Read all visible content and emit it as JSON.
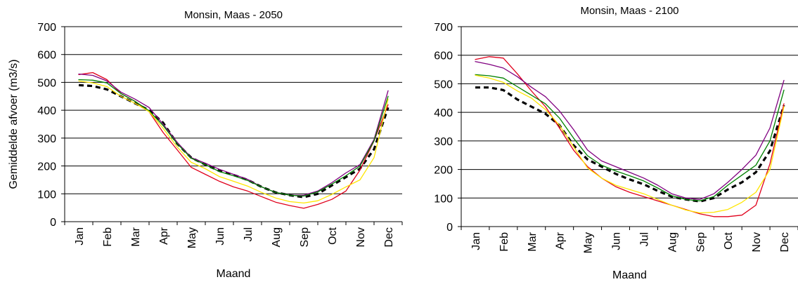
{
  "chart_data": [
    {
      "type": "line",
      "title": "Monsin, Maas - 2050",
      "xlabel": "Maand",
      "ylabel": "Gemiddelde afvoer (m3/s)",
      "ylim": [
        0,
        700
      ],
      "yticks": [
        0,
        100,
        200,
        300,
        400,
        500,
        600,
        700
      ],
      "grid": "horizontal",
      "legend": "none",
      "categories": [
        "Jan",
        "Feb",
        "Mar",
        "Apr",
        "May",
        "Jun",
        "Jul",
        "Aug",
        "Sep",
        "Oct",
        "Nov",
        "Dec"
      ],
      "x": [
        0,
        0.5,
        1,
        1.5,
        2,
        2.5,
        3,
        3.5,
        4,
        4.5,
        5,
        5.5,
        6,
        6.5,
        7,
        7.5,
        8,
        8.5,
        9,
        9.5,
        10,
        10.5,
        11
      ],
      "series": [
        {
          "color": "#000000",
          "style": "dashed",
          "values": [
            490,
            487,
            475,
            450,
            425,
            400,
            355,
            280,
            230,
            205,
            182,
            168,
            150,
            125,
            105,
            95,
            88,
            100,
            130,
            160,
            190,
            260,
            410
          ]
        },
        {
          "color": "#E0001B",
          "values": [
            528,
            535,
            510,
            460,
            432,
            395,
            320,
            258,
            195,
            170,
            145,
            125,
            110,
            90,
            70,
            58,
            48,
            62,
            80,
            110,
            185,
            290,
            420
          ]
        },
        {
          "color": "#800080",
          "values": [
            530,
            525,
            505,
            465,
            440,
            410,
            350,
            285,
            230,
            210,
            188,
            170,
            152,
            125,
            105,
            95,
            95,
            110,
            140,
            175,
            205,
            295,
            470
          ]
        },
        {
          "color": "#008000",
          "values": [
            510,
            508,
            498,
            460,
            432,
            398,
            345,
            280,
            228,
            205,
            180,
            165,
            148,
            125,
            105,
            95,
            92,
            107,
            135,
            165,
            200,
            290,
            450
          ]
        },
        {
          "color": "#FFE600",
          "values": [
            505,
            498,
            485,
            450,
            425,
            395,
            335,
            268,
            213,
            190,
            162,
            145,
            128,
            105,
            85,
            72,
            67,
            75,
            98,
            125,
            150,
            230,
            440
          ]
        }
      ]
    },
    {
      "type": "line",
      "title": "Monsin, Maas - 2100",
      "xlabel": "Maand",
      "ylabel": "",
      "ylim": [
        0,
        700
      ],
      "yticks": [
        0,
        100,
        200,
        300,
        400,
        500,
        600,
        700
      ],
      "grid": "horizontal",
      "legend": "none",
      "categories": [
        "Jan",
        "Feb",
        "Mar",
        "Apr",
        "May",
        "Jun",
        "Jul",
        "Aug",
        "Sep",
        "Oct",
        "Nov",
        "Dec"
      ],
      "x": [
        0,
        0.5,
        1,
        1.5,
        2,
        2.5,
        3,
        3.5,
        4,
        4.5,
        5,
        5.5,
        6,
        6.5,
        7,
        7.5,
        8,
        8.5,
        9,
        9.5,
        10,
        10.5,
        11
      ],
      "series": [
        {
          "color": "#000000",
          "style": "dashed",
          "values": [
            487,
            487,
            478,
            445,
            420,
            395,
            355,
            285,
            235,
            210,
            185,
            165,
            148,
            125,
            105,
            95,
            88,
            100,
            130,
            155,
            190,
            265,
            425
          ]
        },
        {
          "color": "#E0001B",
          "values": [
            585,
            595,
            590,
            535,
            475,
            420,
            345,
            268,
            210,
            170,
            140,
            120,
            105,
            90,
            75,
            60,
            45,
            35,
            35,
            40,
            75,
            220,
            430
          ]
        },
        {
          "color": "#800080",
          "values": [
            578,
            568,
            555,
            525,
            488,
            455,
            405,
            340,
            268,
            230,
            210,
            190,
            170,
            145,
            115,
            100,
            95,
            115,
            155,
            200,
            250,
            345,
            512
          ]
        },
        {
          "color": "#008000",
          "values": [
            532,
            528,
            520,
            490,
            460,
            430,
            380,
            310,
            248,
            215,
            195,
            178,
            160,
            135,
            108,
            95,
            90,
            105,
            145,
            180,
            215,
            300,
            478
          ]
        },
        {
          "color": "#FFE600",
          "values": [
            530,
            520,
            505,
            475,
            450,
            410,
            355,
            280,
            205,
            170,
            145,
            130,
            115,
            95,
            75,
            58,
            48,
            50,
            60,
            85,
            120,
            200,
            420
          ]
        }
      ]
    }
  ]
}
